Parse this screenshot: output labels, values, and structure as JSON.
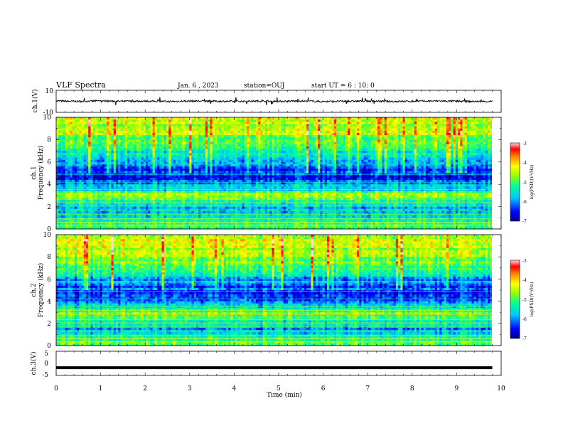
{
  "header": {
    "title": "VLF Spectra",
    "date": "Jan. 6 , 2023",
    "station": "station=OUJ",
    "start_time": "start UT =  6 : 10: 0"
  },
  "chart_data": [
    {
      "type": "line",
      "name": "ch1-waveform",
      "ylabel": "ch.1(V)",
      "ylim": [
        -10,
        10
      ],
      "yticks": [
        "10",
        "-10"
      ],
      "xlim": [
        0,
        10
      ],
      "x": [
        0.0,
        0.5,
        1.0,
        1.5,
        2.0,
        2.5,
        3.0,
        3.5,
        4.0,
        4.5,
        5.0,
        5.5,
        6.0,
        6.5,
        7.0,
        7.5,
        8.0,
        8.5,
        9.0,
        9.5,
        9.8
      ],
      "y": [
        0.3,
        -0.1,
        0.4,
        0.0,
        0.2,
        -0.2,
        0.3,
        0.1,
        -0.1,
        0.2,
        0.0,
        0.3,
        -0.2,
        0.1,
        0.2,
        -0.1,
        0.0,
        0.3,
        0.1,
        -0.2,
        0.0
      ],
      "data_end_min": 9.8
    },
    {
      "type": "heatmap",
      "name": "ch1-spectrogram",
      "ylabel_line1": "ch.1",
      "ylabel_line2": "Frequency (kHz)",
      "ylim": [
        0,
        10
      ],
      "yticks": [
        "0",
        "2",
        "4",
        "6",
        "8",
        "10"
      ],
      "xlim": [
        0,
        10
      ],
      "data_end_min": 9.8,
      "freq_khz": [
        0.5,
        1.5,
        2.5,
        3.0,
        3.5,
        4.5,
        5.5,
        6.5,
        7.5,
        8.5,
        9.5
      ],
      "log_psd": [
        -5.0,
        -6.0,
        -5.2,
        -4.6,
        -5.5,
        -6.5,
        -6.3,
        -5.6,
        -5.0,
        -4.6,
        -4.4
      ],
      "colorbar": {
        "label": "log(PSD)(V²/Hz)",
        "range": [
          -7,
          -3
        ],
        "ticks": [
          "-3",
          "-4",
          "-5",
          "-6",
          "-7"
        ]
      }
    },
    {
      "type": "heatmap",
      "name": "ch2-spectrogram",
      "ylabel_line1": "ch.2",
      "ylabel_line2": "Frequency (kHz)",
      "ylim": [
        0,
        10
      ],
      "yticks": [
        "0",
        "2",
        "4",
        "6",
        "8",
        "10"
      ],
      "xlim": [
        0,
        10
      ],
      "data_end_min": 9.8,
      "freq_khz": [
        0.5,
        1.5,
        2.5,
        3.0,
        3.5,
        4.5,
        5.5,
        6.5,
        7.5,
        8.5,
        9.5
      ],
      "log_psd": [
        -5.0,
        -6.0,
        -5.0,
        -4.8,
        -5.6,
        -6.4,
        -6.2,
        -5.5,
        -4.9,
        -4.5,
        -4.3
      ],
      "colorbar": {
        "label": "log(PSD)(V²/Hz)",
        "range": [
          -7,
          -3
        ],
        "ticks": [
          "-3",
          "-4",
          "-5",
          "-6",
          "-7"
        ]
      }
    },
    {
      "type": "line",
      "name": "ch3-waveform",
      "ylabel": "ch.3(V)",
      "ylim": [
        -5,
        5
      ],
      "yticks": [
        "5",
        "0",
        "-5"
      ],
      "xlim": [
        0,
        10
      ],
      "x": [
        0.0,
        9.8
      ],
      "y": [
        -1.8,
        -1.8
      ],
      "data_end_min": 9.8
    }
  ],
  "xaxis": {
    "label": "Time (min)",
    "ticks": [
      "0",
      "1",
      "2",
      "3",
      "4",
      "5",
      "6",
      "7",
      "8",
      "9",
      "10"
    ]
  },
  "colors": {
    "colormap": [
      "#00008c",
      "#0000ff",
      "#00c8ff",
      "#00ff96",
      "#96ff00",
      "#ffff00",
      "#ff8c00",
      "#ff0000",
      "#ffdcdc"
    ],
    "trace": "#000000"
  }
}
